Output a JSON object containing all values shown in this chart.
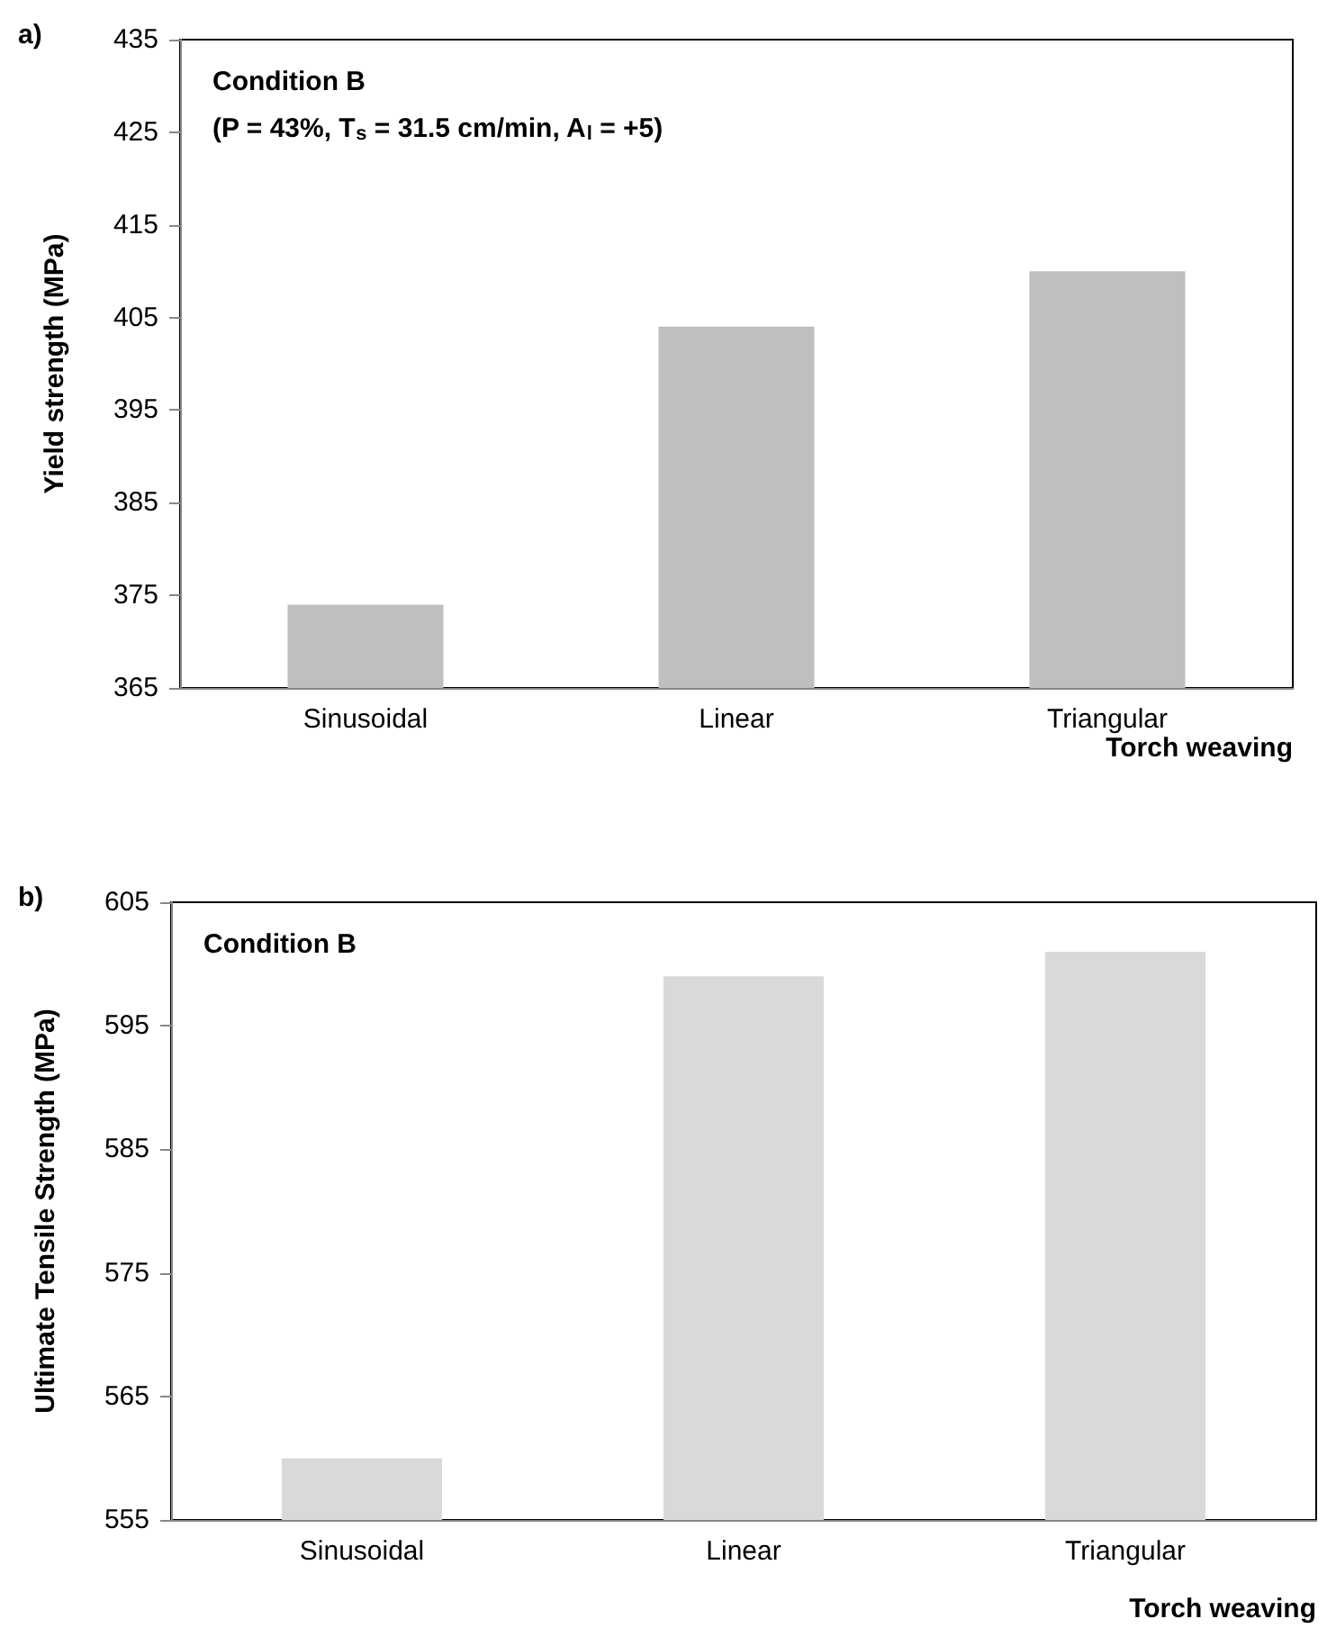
{
  "chart_data": [
    {
      "type": "bar",
      "categories": [
        "Sinusoidal",
        "Linear",
        "Triangular"
      ],
      "values": [
        374,
        404,
        410
      ],
      "color": "#bfbfbf",
      "ylim": [
        365,
        435
      ],
      "yticks": [
        365,
        375,
        385,
        395,
        405,
        415,
        425,
        435
      ],
      "ylabel": "Yield strength (MPa)",
      "xlabel": "Torch weaving",
      "annotations": [
        "a)",
        "Condition B",
        "(P = 43%, T$_{s}$ = 31.5 cm/min, A$_{l}$ = +5)"
      ]
    },
    {
      "type": "bar",
      "categories": [
        "Sinusoidal",
        "Linear",
        "Triangular"
      ],
      "values": [
        560,
        599,
        601
      ],
      "color": "#d9d9d9",
      "ylim": [
        555,
        605
      ],
      "yticks": [
        555,
        565,
        575,
        585,
        595,
        605
      ],
      "ylabel": "Ultimate Tensile Strength (MPa)",
      "xlabel": "Torch weaving",
      "annotations": [
        "b)",
        "Condition B"
      ]
    }
  ]
}
